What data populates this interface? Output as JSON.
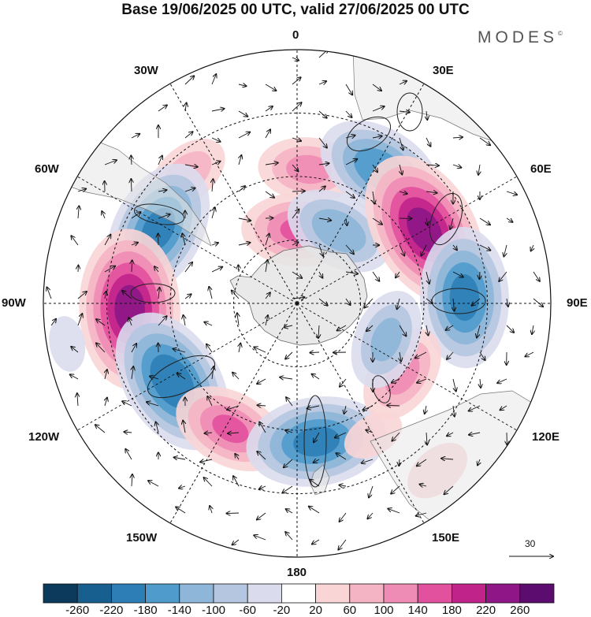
{
  "title": "Base 19/06/2025 00 UTC, valid 27/06/2025 00 UTC",
  "brand": "MODES",
  "brand_mark": "©",
  "longitude_labels": {
    "0": "0",
    "30E": "30E",
    "60E": "60E",
    "90E": "90E",
    "120E": "120E",
    "150E": "150E",
    "180": "180",
    "150W": "150W",
    "120W": "120W",
    "90W": "90W",
    "60W": "60W",
    "30W": "30W"
  },
  "reference_vector": {
    "value": "30"
  },
  "colorbar": {
    "colors": [
      "#0b3a5c",
      "#175f8f",
      "#2d7eb6",
      "#4f9bcb",
      "#8eb6d8",
      "#b5c7e0",
      "#dadced",
      "#ffffff",
      "#f9d5d6",
      "#f5b4c4",
      "#ef8cb5",
      "#e2519d",
      "#c0238a",
      "#8e1686",
      "#5b0c6e"
    ],
    "tick_labels": [
      "-260",
      "-220",
      "-180",
      "-140",
      "-100",
      "-60",
      "-20",
      "20",
      "60",
      "100",
      "140",
      "180",
      "220",
      "260"
    ]
  },
  "anomaly_field": {
    "projection": "south-polar-stereographic",
    "centers": [
      {
        "lon": 5,
        "rad": 0.53,
        "value": 120
      },
      {
        "lon": -40,
        "rad": 0.67,
        "value": 90
      },
      {
        "lon": 2,
        "rad": 0.29,
        "value": 150
      },
      {
        "lon": 32,
        "rad": 0.62,
        "value": -180
      },
      {
        "lon": 30,
        "rad": 0.33,
        "value": -140
      },
      {
        "lon": 60,
        "rad": 0.58,
        "value": 240
      },
      {
        "lon": 88,
        "rad": 0.66,
        "value": -200
      },
      {
        "lon": -62,
        "rad": 0.62,
        "value": -200
      },
      {
        "lon": -92,
        "rad": 0.66,
        "value": 240
      },
      {
        "lon": -122,
        "rad": 0.58,
        "value": -220
      },
      {
        "lon": -152,
        "rad": 0.56,
        "value": 150
      },
      {
        "lon": 172,
        "rad": 0.55,
        "value": -200
      },
      {
        "lon": 150,
        "rad": 0.6,
        "value": 50
      },
      {
        "lon": 124,
        "rad": 0.5,
        "value": 120
      },
      {
        "lon": 112,
        "rad": 0.38,
        "value": -120
      },
      {
        "lon": 140,
        "rad": 0.86,
        "value": 60
      },
      {
        "lon": -100,
        "rad": 0.92,
        "value": -40
      }
    ]
  }
}
